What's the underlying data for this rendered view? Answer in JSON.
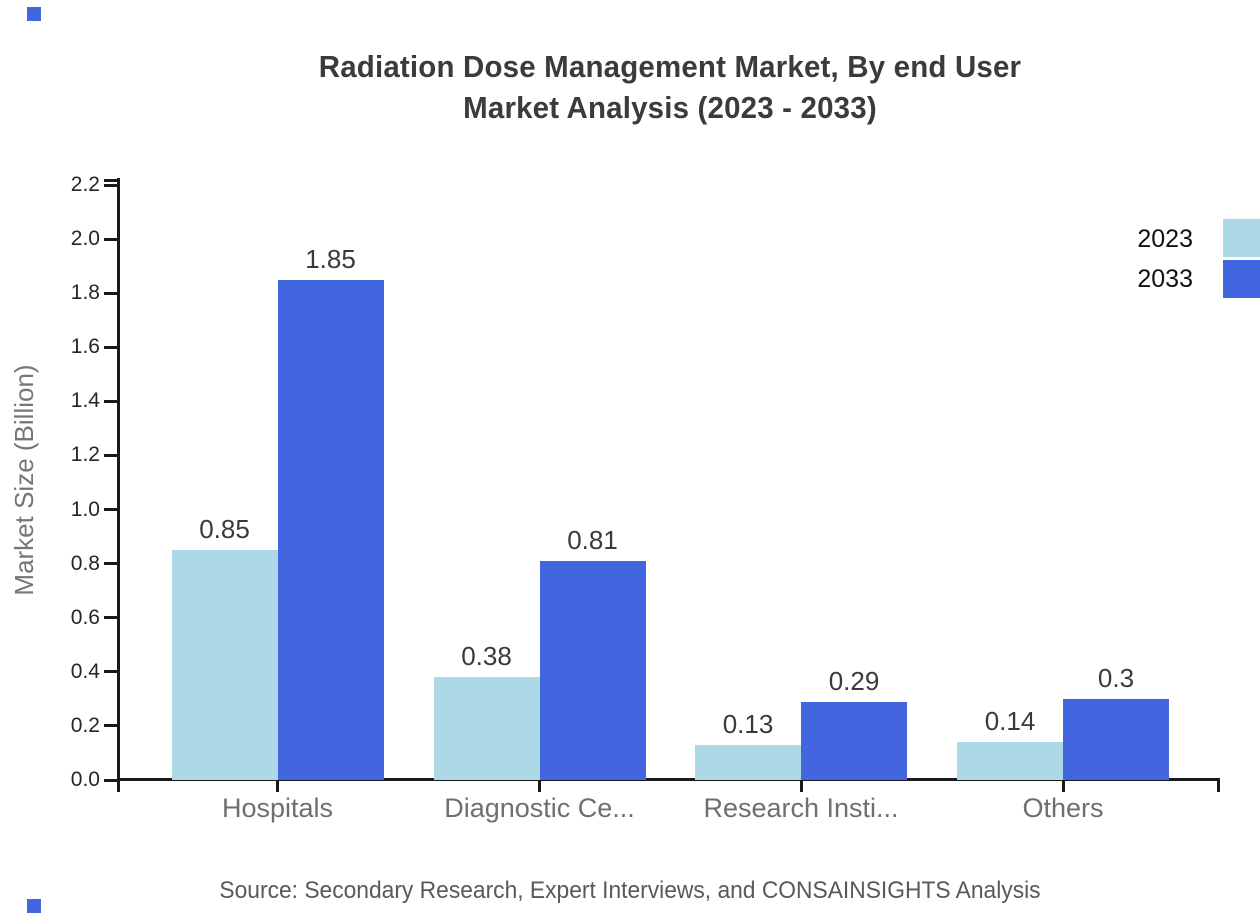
{
  "title": {
    "line1": "Radiation Dose Management Market, By end User",
    "line2": "Market Analysis (2023 - 2033)"
  },
  "source": "Source: Secondary Research, Expert Interviews, and CONSAINSIGHTS Analysis",
  "decor": {
    "corner_square_color": "#4266DF"
  },
  "chart_data": {
    "type": "bar",
    "title": "Radiation Dose Management Market, By end User Market Analysis (2023 - 2033)",
    "categories": [
      "Hospitals",
      "Diagnostic Ce...",
      "Research Insti...",
      "Others"
    ],
    "series": [
      {
        "name": "2023",
        "color": "#ADD8E6",
        "values": [
          0.85,
          0.38,
          0.13,
          0.14
        ]
      },
      {
        "name": "2033",
        "color": "#4266DF",
        "values": [
          1.85,
          0.81,
          0.29,
          0.3
        ]
      }
    ],
    "xlabel": "",
    "ylabel": "Market Size (Billion)",
    "ylim": [
      0,
      2.2
    ],
    "ytick_step": 0.2,
    "grid": false,
    "legend_position": "top-right",
    "axis_color": "#1a1a1a",
    "data_labels_shown": true
  }
}
